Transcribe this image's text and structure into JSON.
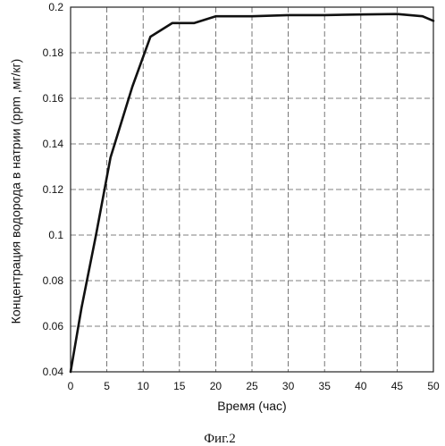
{
  "chart_data": {
    "type": "line",
    "title": "",
    "xlabel": "Время (час)",
    "ylabel": "Концентрация водорода в натрии (ppm ,мг/кг)",
    "xlim": [
      0,
      50
    ],
    "ylim": [
      0.04,
      0.2
    ],
    "x_ticks": [
      0,
      5,
      10,
      15,
      20,
      25,
      30,
      35,
      40,
      45,
      50
    ],
    "y_ticks": [
      0.04,
      0.06,
      0.08,
      0.1,
      0.12,
      0.14,
      0.16,
      0.18,
      0.2
    ],
    "x_tick_labels": [
      "0",
      "5",
      "10",
      "15",
      "20",
      "25",
      "30",
      "35",
      "40",
      "45",
      "50"
    ],
    "y_tick_labels": [
      "0.04",
      "0.06",
      "0.08",
      "0.1",
      "0.12",
      "0.14",
      "0.16",
      "0.18",
      "0.2"
    ],
    "grid": true,
    "series": [
      {
        "x": [
          0,
          1.5,
          3.5,
          5.5,
          8.5,
          11,
          14,
          17,
          20,
          25,
          30,
          35,
          40,
          45,
          48.5,
          50
        ],
        "y": [
          0.04,
          0.068,
          0.1,
          0.134,
          0.165,
          0.187,
          0.193,
          0.193,
          0.196,
          0.196,
          0.1965,
          0.1965,
          0.1968,
          0.197,
          0.196,
          0.194
        ]
      }
    ]
  },
  "figure": {
    "caption": "Фиг.2"
  },
  "colors": {
    "line": "#111111",
    "grid": "#555555",
    "axis": "#222222",
    "background": "#ffffff"
  }
}
